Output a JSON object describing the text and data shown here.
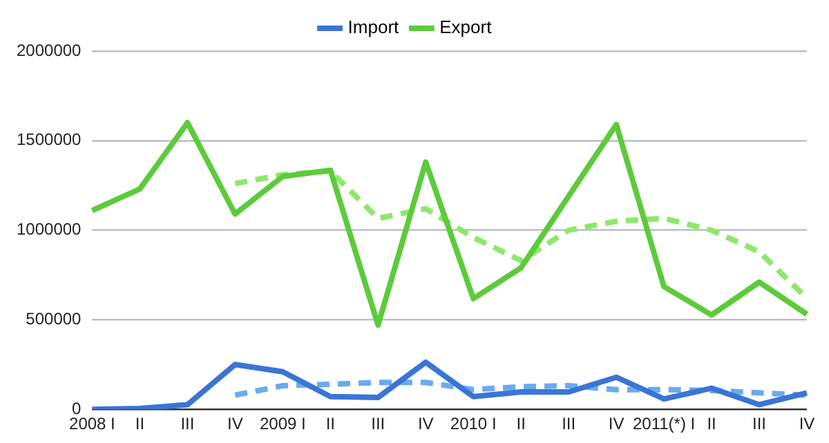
{
  "chart_data": {
    "type": "line",
    "categories": [
      "2008 I",
      "II",
      "III",
      "IV",
      "2009 I",
      "II",
      "III",
      "IV",
      "2010 I",
      "II",
      "III",
      "IV",
      "2011(*) I",
      "II",
      "III",
      "IV"
    ],
    "series": [
      {
        "name": "Import",
        "color": "#3a75d6",
        "values": [
          0,
          5000,
          26000,
          250000,
          210000,
          71000,
          66000,
          263000,
          71000,
          97000,
          97000,
          179000,
          58000,
          118000,
          26000,
          92000
        ]
      },
      {
        "name": "Export",
        "color": "#5ccb3a",
        "values": [
          1110000,
          1230000,
          1600000,
          1090000,
          1300000,
          1335000,
          470000,
          1380000,
          618000,
          790000,
          1190000,
          1590000,
          685000,
          527000,
          710000,
          531000
        ]
      },
      {
        "color": "#6aaaf0",
        "line_style": "dashed",
        "values": [
          null,
          null,
          null,
          79000,
          132000,
          140000,
          150000,
          150000,
          110000,
          126000,
          132000,
          110000,
          110000,
          105000,
          92000,
          79000
        ]
      },
      {
        "color": "#8de86a",
        "line_style": "dashed",
        "values": [
          null,
          null,
          null,
          1260000,
          1310000,
          1330000,
          1066000,
          1120000,
          960000,
          830000,
          1000000,
          1050000,
          1066000,
          1000000,
          880000,
          620000
        ]
      }
    ],
    "ylim": [
      0,
      2000000
    ],
    "yticks": [
      0,
      500000,
      1000000,
      1500000,
      2000000
    ],
    "grid": "y",
    "legend": "top",
    "marker": "none"
  }
}
